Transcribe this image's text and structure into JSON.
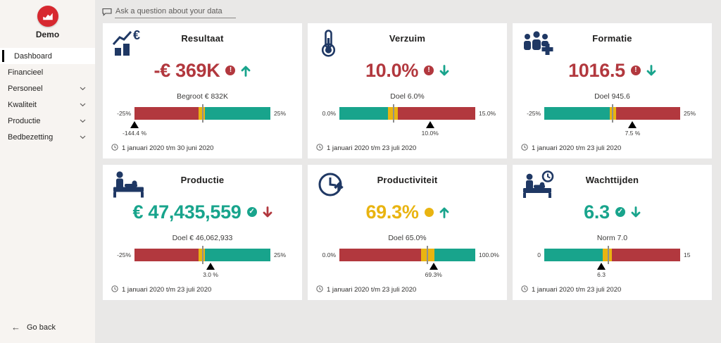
{
  "colors": {
    "red": "#B2383E",
    "teal": "#18A48C",
    "yellow": "#E9B411",
    "navy": "#1F3864",
    "logo_red": "#D7282F",
    "page_bg": "#E9E8E7",
    "sidebar_bg": "#F7F4F1"
  },
  "sidebar": {
    "logo_label": "Demo",
    "items": [
      {
        "label": "Dashboard",
        "active": true,
        "chevron": false
      },
      {
        "label": "Financieel",
        "active": false,
        "chevron": false
      },
      {
        "label": "Personeel",
        "active": false,
        "chevron": true
      },
      {
        "label": "Kwaliteit",
        "active": false,
        "chevron": true
      },
      {
        "label": "Productie",
        "active": false,
        "chevron": true
      },
      {
        "label": "Bedbezetting",
        "active": false,
        "chevron": true
      }
    ],
    "back_label": "Go back"
  },
  "qa_bar": {
    "placeholder": "Ask a question about your data"
  },
  "cards": [
    {
      "title": "Resultaat",
      "icon": "euro-chart-icon",
      "value": "-€ 369K",
      "value_color": "red",
      "status": "alert",
      "trend": "up",
      "trend_color": "teal",
      "target_label": "Begroot € 832K",
      "period": "1 januari 2020 t/m 30 juni 2020",
      "bullet": {
        "min_label": "-25%",
        "max_label": "25%",
        "segments": [
          {
            "color": "red",
            "pct": 47
          },
          {
            "color": "yellow",
            "pct": 5
          },
          {
            "color": "teal",
            "pct": 48
          }
        ],
        "target_pct": 50,
        "marker_pct": 0,
        "marker_label": "-144.4 %"
      }
    },
    {
      "title": "Verzuim",
      "icon": "thermometer-icon",
      "value": "10.0%",
      "value_color": "red",
      "status": "alert",
      "trend": "down",
      "trend_color": "teal",
      "target_label": "Doel 6.0%",
      "period": "1 januari 2020 t/m 23 juli 2020",
      "bullet": {
        "min_label": "0.0%",
        "max_label": "15.0%",
        "segments": [
          {
            "color": "teal",
            "pct": 36
          },
          {
            "color": "yellow",
            "pct": 7
          },
          {
            "color": "red",
            "pct": 57
          }
        ],
        "target_pct": 40,
        "marker_pct": 66.7,
        "marker_label": "10.0%"
      }
    },
    {
      "title": "Formatie",
      "icon": "people-plus-icon",
      "value": "1016.5",
      "value_color": "red",
      "status": "alert",
      "trend": "down",
      "trend_color": "teal",
      "target_label": "Doel 945.6",
      "period": "1 januari 2020 t/m 23 juli 2020",
      "bullet": {
        "min_label": "-25%",
        "max_label": "25%",
        "segments": [
          {
            "color": "teal",
            "pct": 48
          },
          {
            "color": "yellow",
            "pct": 5
          },
          {
            "color": "red",
            "pct": 47
          }
        ],
        "target_pct": 50.5,
        "marker_pct": 65,
        "marker_label": "7.5 %"
      }
    },
    {
      "title": "Productie",
      "icon": "patient-bed-icon",
      "value": "€ 47,435,559",
      "value_color": "teal",
      "status": "ok",
      "trend": "down",
      "trend_color": "red",
      "target_label": "Doel € 46,062,933",
      "period": "1 januari 2020 t/m 23 juli 2020",
      "bullet": {
        "min_label": "-25%",
        "max_label": "25%",
        "segments": [
          {
            "color": "red",
            "pct": 47
          },
          {
            "color": "yellow",
            "pct": 5
          },
          {
            "color": "teal",
            "pct": 48
          }
        ],
        "target_pct": 50,
        "marker_pct": 56,
        "marker_label": "3.0 %"
      }
    },
    {
      "title": "Productiviteit",
      "icon": "clock-arrow-icon",
      "value": "69.3%",
      "value_color": "yellow",
      "status": "warn",
      "trend": "up",
      "trend_color": "teal",
      "target_label": "Doel 65.0%",
      "period": "1 januari 2020 t/m 23 juli 2020",
      "bullet": {
        "min_label": "0.0%",
        "max_label": "100.0%",
        "segments": [
          {
            "color": "red",
            "pct": 60
          },
          {
            "color": "yellow",
            "pct": 10
          },
          {
            "color": "teal",
            "pct": 30
          }
        ],
        "target_pct": 65,
        "marker_pct": 69.3,
        "marker_label": "69.3%"
      }
    },
    {
      "title": "Wachttijden",
      "icon": "bed-clock-icon",
      "value": "6.3",
      "value_color": "teal",
      "status": "ok",
      "trend": "down",
      "trend_color": "teal",
      "target_label": "Norm 7.0",
      "period": "1 januari 2020 t/m 23 juli 2020",
      "bullet": {
        "min_label": "0",
        "max_label": "15",
        "segments": [
          {
            "color": "teal",
            "pct": 43
          },
          {
            "color": "yellow",
            "pct": 7
          },
          {
            "color": "red",
            "pct": 50
          }
        ],
        "target_pct": 47,
        "marker_pct": 42,
        "marker_label": "6.3"
      }
    }
  ]
}
